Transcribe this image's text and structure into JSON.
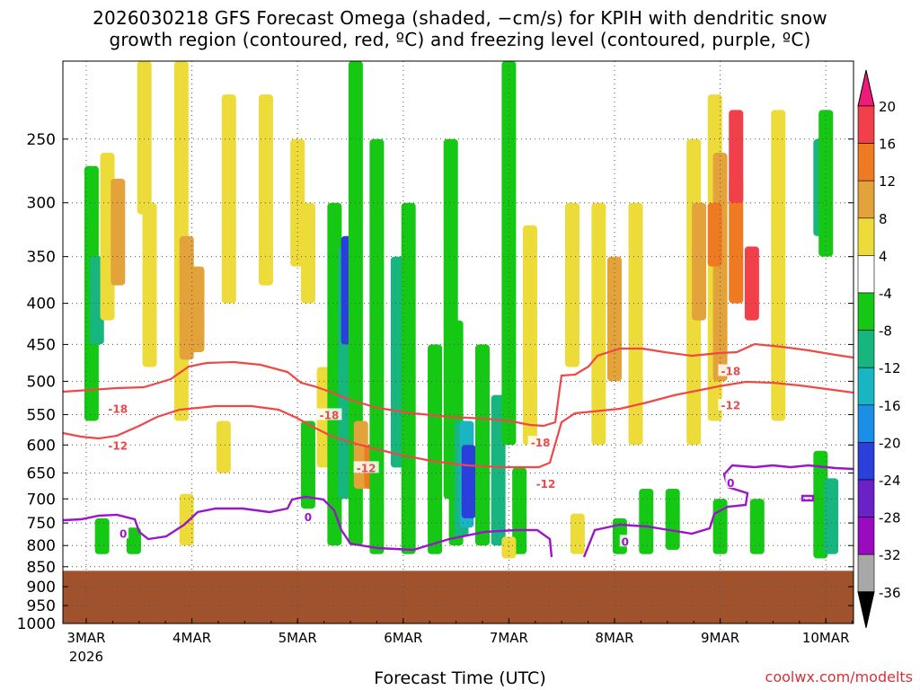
{
  "title_line1": "2026030218 GFS Forecast Omega (shaded, −cm/s) for KPIH with dendritic snow",
  "title_line2": "growth region (contoured, red, ºC) and freezing level (contoured, purple, ºC)",
  "credit": "coolwx.com/modelts",
  "chart_data": {
    "type": "heatmap",
    "xlabel": "Forecast Time (UTC)",
    "ylabel": "",
    "x_ticks": [
      "3MAR",
      "4MAR",
      "5MAR",
      "6MAR",
      "7MAR",
      "8MAR",
      "9MAR",
      "10MAR"
    ],
    "x_year_label": "2026",
    "y_ticks": [
      250,
      300,
      350,
      400,
      450,
      500,
      550,
      600,
      650,
      700,
      750,
      800,
      850,
      900,
      950,
      1000
    ],
    "ylim": [
      1000,
      200
    ],
    "x_range_days": [
      -0.2,
      7.2
    ],
    "grid": true,
    "terrain_top_hpa": 860,
    "terrain_color": "#a0522d",
    "colorbar": {
      "labels": [
        20,
        16,
        12,
        8,
        4,
        -4,
        -8,
        -12,
        -16,
        -20,
        -24,
        -28,
        -32,
        -36
      ],
      "colors": [
        "#ee1b7a",
        "#f2404a",
        "#f07a22",
        "#e3a33a",
        "#eddb3a",
        "#ffffff",
        "#14c814",
        "#17b67e",
        "#1ab5c3",
        "#1a8fe8",
        "#2a3fdc",
        "#6a22c8",
        "#9a0ac0",
        "#a8a8a8",
        "#000000"
      ]
    },
    "omega_cells": [
      {
        "day": 0.05,
        "p_top": 270,
        "p_bot": 560,
        "v": -8
      },
      {
        "day": 0.1,
        "p_top": 350,
        "p_bot": 450,
        "v": -12
      },
      {
        "day": 0.2,
        "p_top": 260,
        "p_bot": 420,
        "v": 4
      },
      {
        "day": 0.3,
        "p_top": 280,
        "p_bot": 380,
        "v": 8
      },
      {
        "day": 0.15,
        "p_top": 740,
        "p_bot": 820,
        "v": -8
      },
      {
        "day": 0.45,
        "p_top": 760,
        "p_bot": 820,
        "v": -8
      },
      {
        "day": 0.55,
        "p_top": 200,
        "p_bot": 310,
        "v": 4
      },
      {
        "day": 0.6,
        "p_top": 300,
        "p_bot": 480,
        "v": 4
      },
      {
        "day": 0.9,
        "p_top": 200,
        "p_bot": 560,
        "v": 4
      },
      {
        "day": 0.95,
        "p_top": 330,
        "p_bot": 470,
        "v": 8
      },
      {
        "day": 1.05,
        "p_top": 360,
        "p_bot": 460,
        "v": 8
      },
      {
        "day": 0.95,
        "p_top": 690,
        "p_bot": 800,
        "v": 4
      },
      {
        "day": 1.35,
        "p_top": 220,
        "p_bot": 400,
        "v": 4
      },
      {
        "day": 1.3,
        "p_top": 560,
        "p_bot": 650,
        "v": 4
      },
      {
        "day": 1.7,
        "p_top": 220,
        "p_bot": 380,
        "v": 4
      },
      {
        "day": 2.0,
        "p_top": 250,
        "p_bot": 360,
        "v": 4
      },
      {
        "day": 2.1,
        "p_top": 300,
        "p_bot": 400,
        "v": 4
      },
      {
        "day": 2.1,
        "p_top": 560,
        "p_bot": 720,
        "v": -8
      },
      {
        "day": 2.25,
        "p_top": 480,
        "p_bot": 640,
        "v": 4
      },
      {
        "day": 2.35,
        "p_top": 300,
        "p_bot": 800,
        "v": -8
      },
      {
        "day": 2.45,
        "p_top": 340,
        "p_bot": 700,
        "v": -12
      },
      {
        "day": 2.48,
        "p_top": 330,
        "p_bot": 450,
        "v": -24
      },
      {
        "day": 2.55,
        "p_top": 200,
        "p_bot": 800,
        "v": -8
      },
      {
        "day": 2.6,
        "p_top": 560,
        "p_bot": 680,
        "v": 8
      },
      {
        "day": 2.7,
        "p_top": 600,
        "p_bot": 680,
        "v": 12
      },
      {
        "day": 2.75,
        "p_top": 250,
        "p_bot": 820,
        "v": -8
      },
      {
        "day": 2.95,
        "p_top": 350,
        "p_bot": 640,
        "v": -12
      },
      {
        "day": 3.05,
        "p_top": 300,
        "p_bot": 820,
        "v": -8
      },
      {
        "day": 3.3,
        "p_top": 450,
        "p_bot": 820,
        "v": -8
      },
      {
        "day": 3.45,
        "p_top": 250,
        "p_bot": 700,
        "v": -8
      },
      {
        "day": 3.5,
        "p_top": 420,
        "p_bot": 800,
        "v": -8
      },
      {
        "day": 3.55,
        "p_top": 560,
        "p_bot": 780,
        "v": -12
      },
      {
        "day": 3.6,
        "p_top": 560,
        "p_bot": 760,
        "v": -16
      },
      {
        "day": 3.62,
        "p_top": 600,
        "p_bot": 740,
        "v": -24
      },
      {
        "day": 3.75,
        "p_top": 450,
        "p_bot": 800,
        "v": -8
      },
      {
        "day": 3.9,
        "p_top": 520,
        "p_bot": 800,
        "v": -12
      },
      {
        "day": 4.0,
        "p_top": 200,
        "p_bot": 600,
        "v": -8
      },
      {
        "day": 4.1,
        "p_top": 640,
        "p_bot": 820,
        "v": -8
      },
      {
        "day": 4.2,
        "p_top": 320,
        "p_bot": 600,
        "v": 4
      },
      {
        "day": 4.0,
        "p_top": 780,
        "p_bot": 830,
        "v": 4
      },
      {
        "day": 4.6,
        "p_top": 300,
        "p_bot": 480,
        "v": 4
      },
      {
        "day": 4.65,
        "p_top": 730,
        "p_bot": 820,
        "v": 4
      },
      {
        "day": 4.85,
        "p_top": 300,
        "p_bot": 600,
        "v": 4
      },
      {
        "day": 5.0,
        "p_top": 350,
        "p_bot": 500,
        "v": 8
      },
      {
        "day": 5.2,
        "p_top": 300,
        "p_bot": 600,
        "v": 4
      },
      {
        "day": 5.05,
        "p_top": 740,
        "p_bot": 820,
        "v": -8
      },
      {
        "day": 5.3,
        "p_top": 680,
        "p_bot": 820,
        "v": -8
      },
      {
        "day": 5.55,
        "p_top": 680,
        "p_bot": 810,
        "v": -8
      },
      {
        "day": 5.75,
        "p_top": 250,
        "p_bot": 600,
        "v": 4
      },
      {
        "day": 5.8,
        "p_top": 300,
        "p_bot": 420,
        "v": 8
      },
      {
        "day": 5.95,
        "p_top": 220,
        "p_bot": 560,
        "v": 4
      },
      {
        "day": 6.0,
        "p_top": 260,
        "p_bot": 500,
        "v": 8
      },
      {
        "day": 5.95,
        "p_top": 300,
        "p_bot": 360,
        "v": 12
      },
      {
        "day": 6.15,
        "p_top": 280,
        "p_bot": 400,
        "v": 12
      },
      {
        "day": 6.15,
        "p_top": 230,
        "p_bot": 300,
        "v": 16
      },
      {
        "day": 6.3,
        "p_top": 340,
        "p_bot": 420,
        "v": 16
      },
      {
        "day": 6.0,
        "p_top": 700,
        "p_bot": 820,
        "v": -8
      },
      {
        "day": 6.35,
        "p_top": 700,
        "p_bot": 820,
        "v": -8
      },
      {
        "day": 6.55,
        "p_top": 230,
        "p_bot": 560,
        "v": 4
      },
      {
        "day": 6.95,
        "p_top": 250,
        "p_bot": 330,
        "v": -12
      },
      {
        "day": 7.0,
        "p_top": 230,
        "p_bot": 350,
        "v": -8
      },
      {
        "day": 6.95,
        "p_top": 610,
        "p_bot": 830,
        "v": -8
      },
      {
        "day": 7.05,
        "p_top": 660,
        "p_bot": 820,
        "v": -12
      }
    ],
    "dgz_labels": [
      {
        "day": 0.3,
        "p": 540,
        "text": "-18"
      },
      {
        "day": 0.3,
        "p": 600,
        "text": "-12"
      },
      {
        "day": 2.3,
        "p": 550,
        "text": "-18"
      },
      {
        "day": 2.65,
        "p": 640,
        "text": "-12"
      },
      {
        "day": 4.3,
        "p": 595,
        "text": "-18"
      },
      {
        "day": 4.35,
        "p": 670,
        "text": "-12"
      },
      {
        "day": 6.1,
        "p": 485,
        "text": "-18"
      },
      {
        "day": 6.1,
        "p": 535,
        "text": "-12"
      }
    ],
    "freezing_labels": [
      {
        "day": 0.35,
        "p": 772,
        "text": "0"
      },
      {
        "day": 2.1,
        "p": 736,
        "text": "0"
      },
      {
        "day": 5.1,
        "p": 790,
        "text": "0"
      },
      {
        "day": 6.1,
        "p": 668,
        "text": "0"
      }
    ]
  }
}
